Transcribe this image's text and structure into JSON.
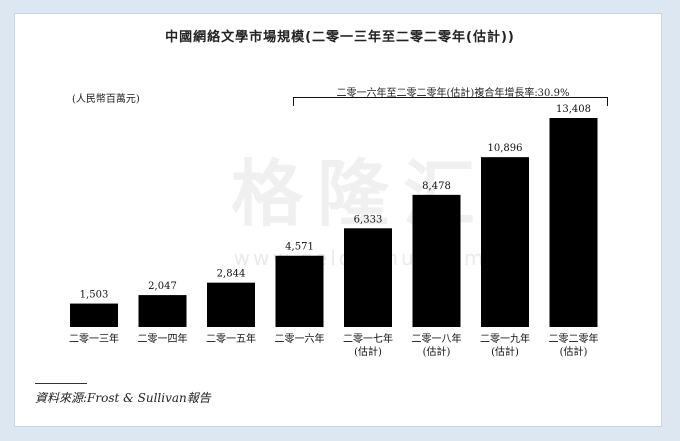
{
  "title": "中國網絡文學市場規模(二零一三年至二零二零年(估計))",
  "unit_label": "(人民幣百萬元)",
  "cagr_label": "二零一六年至二零二零年(估計)複合年增長率:30.9%",
  "watermark": "格隆汇",
  "watermark_sub": "www.gelonghui.com",
  "source": "資料來源:Frost & Sullivan報告",
  "colors": {
    "bar": "#000000",
    "background": "#dde7f1",
    "panel": "#ffffff"
  },
  "chart_data": {
    "type": "bar",
    "title": "中國網絡文學市場規模(二零一三年至二零二零年(估計))",
    "ylabel": "(人民幣百萬元)",
    "categories": [
      [
        "二零一三年"
      ],
      [
        "二零一四年"
      ],
      [
        "二零一五年"
      ],
      [
        "二零一六年"
      ],
      [
        "二零一七年",
        "(估計)"
      ],
      [
        "二零一八年",
        "(估計)"
      ],
      [
        "二零一九年",
        "(估計)"
      ],
      [
        "二零二零年",
        "(估計)"
      ]
    ],
    "values": [
      1503,
      2047,
      2844,
      4571,
      6333,
      8478,
      10896,
      13408
    ],
    "value_labels": [
      "1,503",
      "2,047",
      "2,844",
      "4,571",
      "6,333",
      "8,478",
      "10,896",
      "13,408"
    ],
    "ylim": [
      0,
      13408
    ],
    "grid": false,
    "legend": "none"
  }
}
